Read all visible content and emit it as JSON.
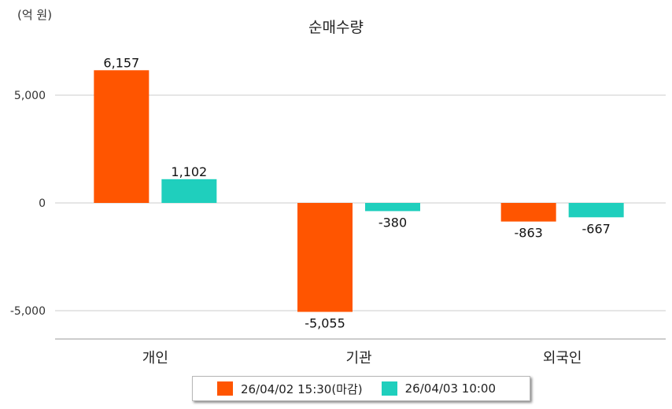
{
  "chart_data": {
    "type": "bar",
    "title": "순매수량",
    "unit": "(억 원)",
    "categories": [
      "개인",
      "기관",
      "외국인"
    ],
    "series": [
      {
        "name": "26/04/02 15:30(마감)",
        "values": [
          6157,
          -5055,
          -863
        ],
        "labels": [
          "6,157",
          "-5,055",
          "-863"
        ],
        "color": "#ff5500"
      },
      {
        "name": "26/04/03 10:00",
        "values": [
          1102,
          -380,
          -667
        ],
        "labels": [
          "1,102",
          "-380",
          "-667"
        ],
        "color": "#1fcfbd"
      }
    ],
    "yticks": [
      5000,
      0,
      -5000
    ],
    "ytick_labels": [
      "5,000",
      "0",
      "-5,000"
    ],
    "ylim": [
      -6300,
      7000
    ],
    "legend": "bottom",
    "grid": true
  }
}
